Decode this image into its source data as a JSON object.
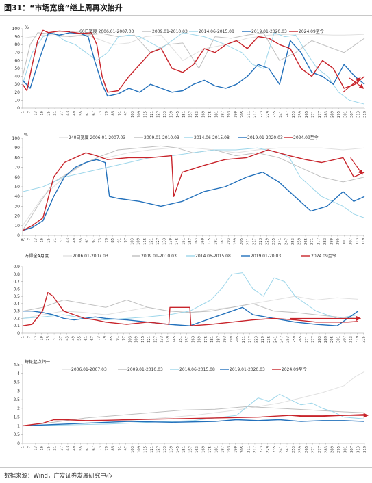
{
  "figure": {
    "title": "图31：“市场宽度”继上周再次抬升",
    "source": "数据来源：Wind，广发证券发展研究中心"
  },
  "colors": {
    "s2006": "#e0e0e0",
    "s2009": "#bfbfbf",
    "s2014": "#9dd6ea",
    "s2019": "#2270bb",
    "s2024": "#c8242b",
    "arrow": "#c8242b"
  },
  "chart_data": [
    {
      "type": "line",
      "ylabel": "%",
      "ylim": [
        0,
        100
      ],
      "yticks": [
        "0",
        "10",
        "20",
        "30",
        "40",
        "50",
        "60",
        "70",
        "80",
        "90",
        "100"
      ],
      "x_start": 1,
      "x_end": 319,
      "x_step": 6,
      "legend": [
        "60日宽度 2006.01-2007.03",
        "2009.01-2010.03",
        "2014.06-2015.08",
        "2019.01-2020.03",
        "2024.09至今"
      ],
      "series": [
        {
          "name": "60日宽度 2006.01-2007.03",
          "key": "s2006",
          "x": [
            1,
            20,
            40,
            60,
            75,
            85,
            100,
            115,
            130,
            150,
            170,
            190,
            210,
            230,
            250,
            270,
            290,
            300,
            319
          ],
          "values": [
            88,
            92,
            90,
            93,
            85,
            80,
            82,
            90,
            92,
            60,
            75,
            80,
            88,
            92,
            93,
            93,
            92,
            92,
            93
          ]
        },
        {
          "name": "2009.01-2010.03",
          "key": "s2009",
          "x": [
            1,
            8,
            15,
            30,
            45,
            60,
            75,
            90,
            105,
            120,
            135,
            150,
            165,
            180,
            195,
            210,
            225,
            240,
            255,
            270,
            290,
            300,
            319
          ],
          "values": [
            40,
            80,
            95,
            93,
            90,
            92,
            94,
            90,
            92,
            70,
            80,
            82,
            50,
            90,
            88,
            92,
            95,
            60,
            70,
            85,
            75,
            70,
            88
          ]
        },
        {
          "name": "2014.06-2015.08",
          "key": "s2014",
          "x": [
            1,
            10,
            20,
            30,
            40,
            50,
            60,
            70,
            80,
            90,
            100,
            110,
            130,
            150,
            170,
            190,
            205,
            215,
            225,
            235,
            245,
            255,
            265,
            275,
            285,
            295,
            305,
            319
          ],
          "values": [
            30,
            70,
            90,
            95,
            85,
            80,
            70,
            60,
            70,
            90,
            92,
            90,
            75,
            95,
            90,
            80,
            70,
            55,
            50,
            95,
            90,
            92,
            70,
            50,
            40,
            20,
            10,
            5
          ]
        },
        {
          "name": "2019.01-2020.03",
          "key": "s2019",
          "x": [
            1,
            8,
            15,
            25,
            35,
            45,
            55,
            62,
            68,
            75,
            80,
            90,
            100,
            110,
            120,
            130,
            140,
            150,
            160,
            170,
            180,
            190,
            200,
            210,
            220,
            230,
            240,
            250,
            260,
            270,
            280,
            290,
            300,
            310,
            319
          ],
          "values": [
            35,
            25,
            55,
            95,
            92,
            95,
            94,
            90,
            60,
            30,
            15,
            18,
            25,
            20,
            30,
            25,
            20,
            22,
            30,
            35,
            28,
            25,
            30,
            40,
            55,
            50,
            30,
            85,
            70,
            45,
            40,
            30,
            55,
            40,
            30
          ]
        },
        {
          "name": "2024.09至今",
          "key": "s2024",
          "x": [
            1,
            5,
            10,
            15,
            20,
            25,
            35,
            45,
            55,
            65,
            70,
            75,
            80,
            90,
            100,
            110,
            120,
            130,
            140,
            150,
            160,
            170,
            180,
            190,
            200,
            210,
            220,
            230,
            240,
            250,
            260,
            270,
            280,
            290,
            300,
            310,
            319
          ],
          "values": [
            30,
            22,
            55,
            85,
            98,
            95,
            97,
            96,
            94,
            95,
            80,
            40,
            20,
            22,
            40,
            55,
            70,
            75,
            50,
            45,
            55,
            75,
            70,
            80,
            85,
            75,
            90,
            88,
            80,
            75,
            50,
            40,
            60,
            50,
            25,
            30,
            40
          ]
        }
      ],
      "arrows": [
        {
          "x1": 305,
          "y1": 38,
          "x2": 318,
          "y2": 25
        },
        {
          "x1": 299,
          "y1": 20,
          "x2": 315,
          "y2": 38
        }
      ]
    },
    {
      "type": "line",
      "ylabel": "%",
      "ylim": [
        0,
        100
      ],
      "yticks": [
        "0",
        "10",
        "20",
        "30",
        "40",
        "50",
        "60",
        "70",
        "80",
        "90",
        "100"
      ],
      "x_first_label": "天",
      "x_start": 1,
      "x_end": 320,
      "x_step": 6,
      "legend": [
        "240日宽度 2006.01-2007.03",
        "2009.01-2010.03",
        "2014.06-2015.08",
        "2019.01-2020.03",
        "2024.09至今"
      ],
      "series": [
        {
          "name": "240日宽度 2006.01-2007.03",
          "key": "s2006",
          "x": [
            1,
            20,
            40,
            60,
            80,
            100,
            120,
            140,
            160,
            180,
            200,
            220,
            240,
            260,
            280,
            300,
            320
          ],
          "values": [
            10,
            40,
            60,
            75,
            80,
            85,
            88,
            90,
            90,
            88,
            85,
            88,
            90,
            90,
            90,
            88,
            90
          ]
        },
        {
          "name": "2009.01-2010.03",
          "key": "s2009",
          "x": [
            1,
            15,
            30,
            45,
            60,
            75,
            90,
            110,
            130,
            145,
            160,
            180,
            200,
            220,
            240,
            260,
            280,
            300,
            320
          ],
          "values": [
            5,
            30,
            55,
            65,
            75,
            82,
            88,
            90,
            92,
            90,
            85,
            88,
            82,
            85,
            80,
            70,
            60,
            55,
            60
          ]
        },
        {
          "name": "2014.06-2015.08",
          "key": "s2014",
          "x": [
            1,
            20,
            40,
            60,
            80,
            100,
            120,
            140,
            160,
            180,
            200,
            220,
            240,
            250,
            260,
            270,
            280,
            290,
            300,
            310,
            320
          ],
          "values": [
            45,
            50,
            60,
            65,
            70,
            75,
            80,
            82,
            85,
            88,
            88,
            90,
            85,
            80,
            60,
            50,
            40,
            35,
            30,
            22,
            18
          ]
        },
        {
          "name": "2019.01-2020.03",
          "key": "s2019",
          "x": [
            1,
            10,
            20,
            30,
            40,
            50,
            60,
            70,
            78,
            82,
            90,
            110,
            130,
            150,
            170,
            190,
            210,
            225,
            240,
            255,
            270,
            285,
            300,
            310,
            320
          ],
          "values": [
            5,
            8,
            15,
            40,
            60,
            70,
            75,
            78,
            75,
            40,
            38,
            35,
            30,
            35,
            45,
            50,
            60,
            65,
            55,
            40,
            25,
            30,
            45,
            35,
            40
          ]
        },
        {
          "name": "2024.09至今",
          "key": "s2024",
          "x": [
            1,
            10,
            20,
            30,
            40,
            50,
            60,
            70,
            80,
            100,
            120,
            140,
            142,
            150,
            170,
            190,
            210,
            230,
            250,
            265,
            280,
            300,
            310,
            320
          ],
          "values": [
            5,
            10,
            18,
            60,
            75,
            80,
            85,
            82,
            78,
            80,
            80,
            82,
            40,
            65,
            72,
            78,
            80,
            88,
            82,
            78,
            75,
            80,
            60,
            65
          ]
        }
      ],
      "arrows": [
        {
          "x1": 307,
          "y1": 80,
          "x2": 318,
          "y2": 63
        }
      ]
    },
    {
      "type": "line",
      "ylabel": "万得全A月度",
      "ylim": [
        0,
        0.9
      ],
      "yticks": [
        "0",
        "0.1",
        "0.2",
        "0.3",
        "0.4",
        "0.5",
        "0.6",
        "0.7",
        "0.8",
        "0.9"
      ],
      "x_start": 1,
      "x_end": 326,
      "x_step": 6,
      "legend": [
        "2006.01-2007.03",
        "2009.01-2010.03",
        "2014.06-2015.08",
        "2019.01-20.03",
        "2024.09至今"
      ],
      "series": [
        {
          "name": "2006.01-2007.03",
          "key": "s2006",
          "x": [
            1,
            20,
            40,
            60,
            80,
            100,
            120,
            140,
            160,
            180,
            200,
            220,
            240,
            260,
            280,
            300,
            320
          ],
          "values": [
            0.2,
            0.25,
            0.3,
            0.28,
            0.25,
            0.3,
            0.35,
            0.3,
            0.28,
            0.32,
            0.35,
            0.4,
            0.45,
            0.5,
            0.45,
            0.48,
            0.46
          ]
        },
        {
          "name": "2009.01-2010.03",
          "key": "s2009",
          "x": [
            1,
            20,
            40,
            60,
            80,
            100,
            120,
            140,
            160,
            180,
            200,
            220,
            240,
            260,
            280,
            300,
            320
          ],
          "values": [
            0.3,
            0.35,
            0.45,
            0.4,
            0.35,
            0.45,
            0.35,
            0.3,
            0.28,
            0.3,
            0.35,
            0.4,
            0.3,
            0.28,
            0.25,
            0.22,
            0.2
          ]
        },
        {
          "name": "2014.06-2015.08",
          "key": "s2014",
          "x": [
            1,
            20,
            40,
            60,
            80,
            100,
            120,
            140,
            160,
            180,
            190,
            200,
            210,
            220,
            230,
            240,
            250,
            260,
            270,
            280,
            300,
            320
          ],
          "values": [
            0.2,
            0.22,
            0.25,
            0.2,
            0.18,
            0.2,
            0.22,
            0.25,
            0.3,
            0.45,
            0.6,
            0.8,
            0.82,
            0.6,
            0.5,
            0.75,
            0.7,
            0.5,
            0.4,
            0.3,
            0.2,
            0.25
          ]
        },
        {
          "name": "2019.01-20.03",
          "key": "s2019",
          "x": [
            1,
            10,
            20,
            30,
            40,
            50,
            60,
            70,
            80,
            100,
            120,
            140,
            160,
            180,
            200,
            210,
            220,
            240,
            260,
            280,
            300,
            310,
            320
          ],
          "values": [
            0.3,
            0.3,
            0.28,
            0.25,
            0.2,
            0.18,
            0.2,
            0.22,
            0.2,
            0.18,
            0.15,
            0.12,
            0.1,
            0.2,
            0.3,
            0.35,
            0.25,
            0.2,
            0.15,
            0.12,
            0.1,
            0.2,
            0.3
          ]
        },
        {
          "name": "2024.09至今",
          "key": "s2024",
          "x": [
            1,
            10,
            20,
            25,
            30,
            40,
            50,
            60,
            70,
            80,
            100,
            120,
            140,
            141,
            150,
            160,
            161,
            180,
            200,
            220,
            240,
            260,
            280,
            300,
            310,
            320
          ],
          "values": [
            0.1,
            0.12,
            0.3,
            0.55,
            0.5,
            0.3,
            0.25,
            0.2,
            0.18,
            0.15,
            0.12,
            0.15,
            0.12,
            0.35,
            0.35,
            0.35,
            0.1,
            0.12,
            0.15,
            0.18,
            0.2,
            0.18,
            0.15,
            0.15,
            0.15,
            0.16
          ]
        }
      ],
      "arrows": [
        {
          "x1": 255,
          "y1": 0.2,
          "x2": 322,
          "y2": 0.2
        }
      ]
    },
    {
      "type": "line",
      "ylabel": "每轮起点归一",
      "ylim": [
        0,
        4.5
      ],
      "yticks": [
        "0",
        "0.5",
        "1",
        "1.5",
        "2",
        "2.5",
        "3",
        "3.5",
        "4",
        "4.5"
      ],
      "x_start": 1,
      "x_end": 319,
      "x_step": 6,
      "legend": [
        "2006.01-2007.03",
        "2009.01-2010.03",
        "2014.06-2015.08",
        "2019.01-2020.03",
        "2024.09至今"
      ],
      "series": [
        {
          "name": "2006.01-2007.03",
          "key": "s2006",
          "x": [
            1,
            40,
            80,
            120,
            160,
            200,
            240,
            260,
            280,
            300,
            310,
            319
          ],
          "values": [
            1,
            1.1,
            1.2,
            1.4,
            1.6,
            1.9,
            2.3,
            2.6,
            2.9,
            3.3,
            3.8,
            4.1
          ]
        },
        {
          "name": "2009.01-2010.03",
          "key": "s2009",
          "x": [
            1,
            30,
            60,
            90,
            120,
            150,
            180,
            210,
            240,
            270,
            300,
            319
          ],
          "values": [
            1,
            1.2,
            1.45,
            1.6,
            1.75,
            1.9,
            1.95,
            2.1,
            2.0,
            1.9,
            1.8,
            1.75
          ]
        },
        {
          "name": "2014.06-2015.08",
          "key": "s2014",
          "x": [
            1,
            40,
            80,
            120,
            160,
            200,
            210,
            220,
            230,
            240,
            250,
            260,
            270,
            280,
            290,
            300,
            319
          ],
          "values": [
            1,
            1.05,
            1.1,
            1.2,
            1.3,
            1.6,
            2.1,
            2.6,
            2.4,
            2.8,
            2.5,
            2.2,
            2.3,
            2.0,
            1.8,
            1.5,
            1.4
          ]
        },
        {
          "name": "2019.01-2020.03",
          "key": "s2019",
          "x": [
            1,
            20,
            40,
            60,
            80,
            100,
            140,
            180,
            200,
            220,
            240,
            260,
            280,
            300,
            319
          ],
          "values": [
            1,
            1.05,
            1.1,
            1.15,
            1.2,
            1.25,
            1.2,
            1.25,
            1.35,
            1.3,
            1.35,
            1.25,
            1.3,
            1.3,
            1.25
          ]
        },
        {
          "name": "2024.09至今",
          "key": "s2024",
          "x": [
            1,
            20,
            30,
            40,
            60,
            80,
            100,
            140,
            180,
            220,
            250,
            260,
            280,
            300,
            319
          ],
          "values": [
            1,
            1.15,
            1.35,
            1.35,
            1.3,
            1.32,
            1.35,
            1.4,
            1.45,
            1.5,
            1.6,
            1.55,
            1.55,
            1.6,
            1.65
          ]
        }
      ],
      "arrows": [
        {
          "x1": 255,
          "y1": 1.6,
          "x2": 322,
          "y2": 1.6
        }
      ]
    }
  ]
}
